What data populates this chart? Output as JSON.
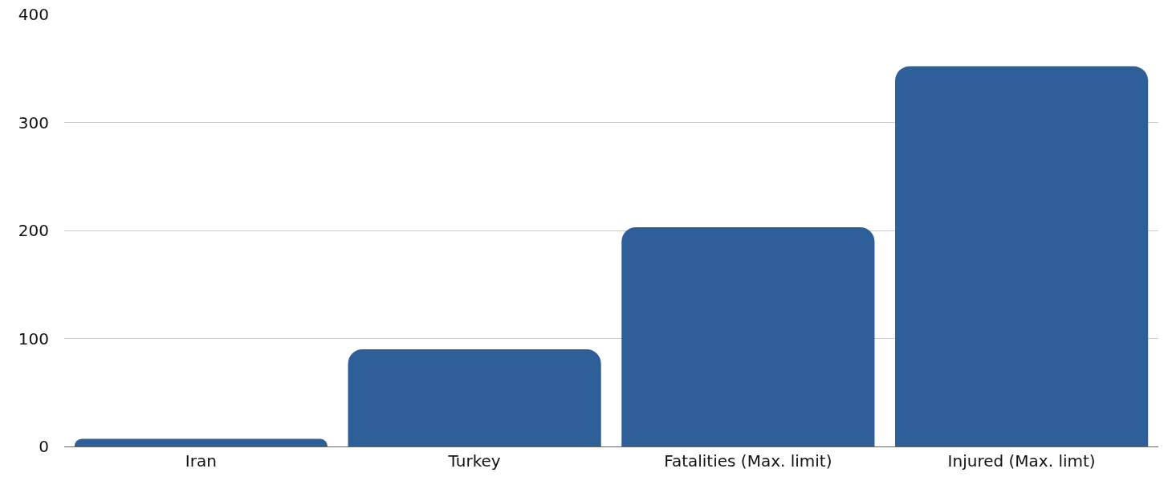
{
  "chart_data": {
    "type": "bar",
    "categories": [
      "Iran",
      "Turkey",
      "Fatalities (Max. limit)",
      "Injured (Max. limt)"
    ],
    "values": [
      7,
      90,
      203,
      352
    ],
    "color": "#2e5f98",
    "ylim": [
      0,
      400
    ],
    "yticks": [
      0,
      100,
      200,
      300,
      400
    ],
    "grid": "y",
    "legend": false
  }
}
